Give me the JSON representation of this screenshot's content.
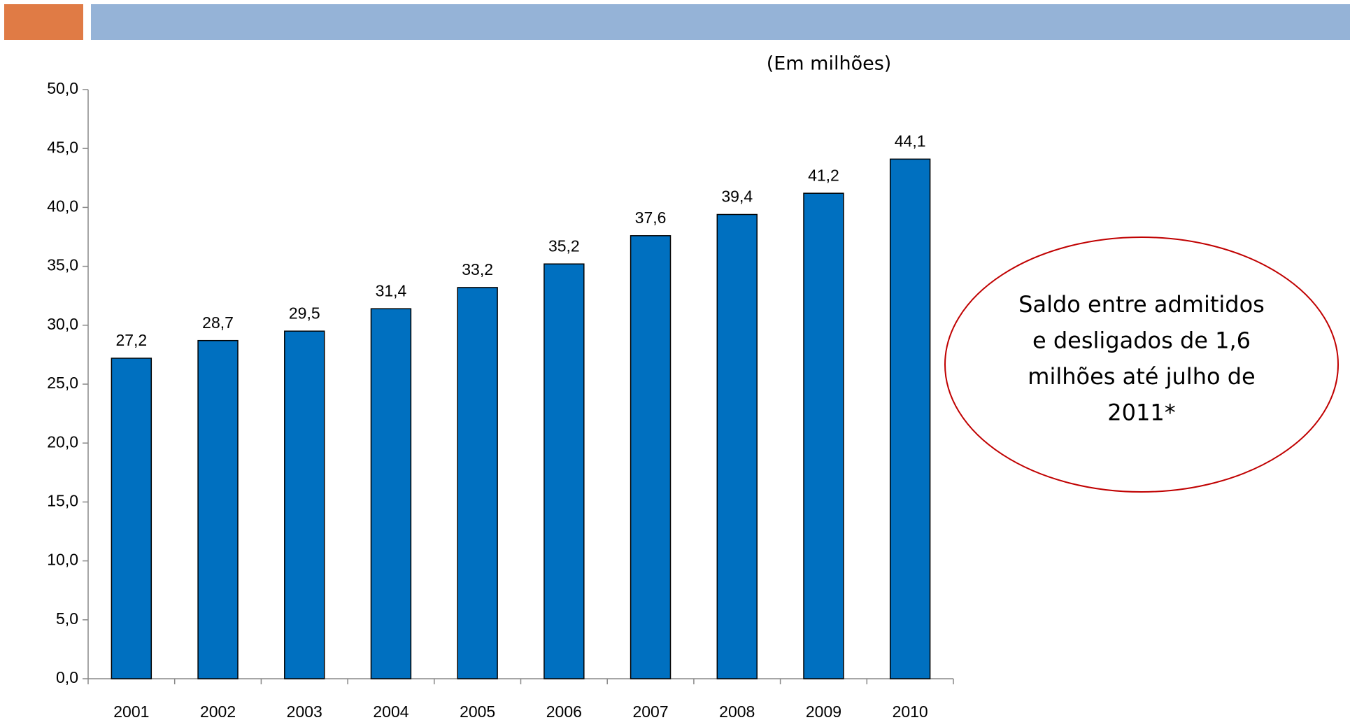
{
  "chart_data": {
    "type": "bar",
    "subtitle": "(Em milhões)",
    "categories": [
      "2001",
      "2002",
      "2003",
      "2004",
      "2005",
      "2006",
      "2007",
      "2008",
      "2009",
      "2010"
    ],
    "values": [
      27.2,
      28.7,
      29.5,
      31.4,
      33.2,
      35.2,
      37.6,
      39.4,
      41.2,
      44.1
    ],
    "value_labels": [
      "27,2",
      "28,7",
      "29,5",
      "31,4",
      "33,2",
      "35,2",
      "37,6",
      "39,4",
      "41,2",
      "44,1"
    ],
    "color": "#0070c0",
    "ylim": [
      0,
      50
    ],
    "yticks": [
      {
        "value": 0,
        "label": "0,0"
      },
      {
        "value": 5,
        "label": "5,0"
      },
      {
        "value": 10,
        "label": "10,0"
      },
      {
        "value": 15,
        "label": "15,0"
      },
      {
        "value": 20,
        "label": "20,0"
      },
      {
        "value": 25,
        "label": "25,0"
      },
      {
        "value": 30,
        "label": "30,0"
      },
      {
        "value": 35,
        "label": "35,0"
      },
      {
        "value": 40,
        "label": "40,0"
      },
      {
        "value": 45,
        "label": "45,0"
      },
      {
        "value": 50,
        "label": "50,0"
      }
    ],
    "grid": false,
    "annotation": [
      "Saldo entre admitidos",
      "e desligados de 1,6",
      "milhões até julho de",
      "2011*"
    ]
  }
}
